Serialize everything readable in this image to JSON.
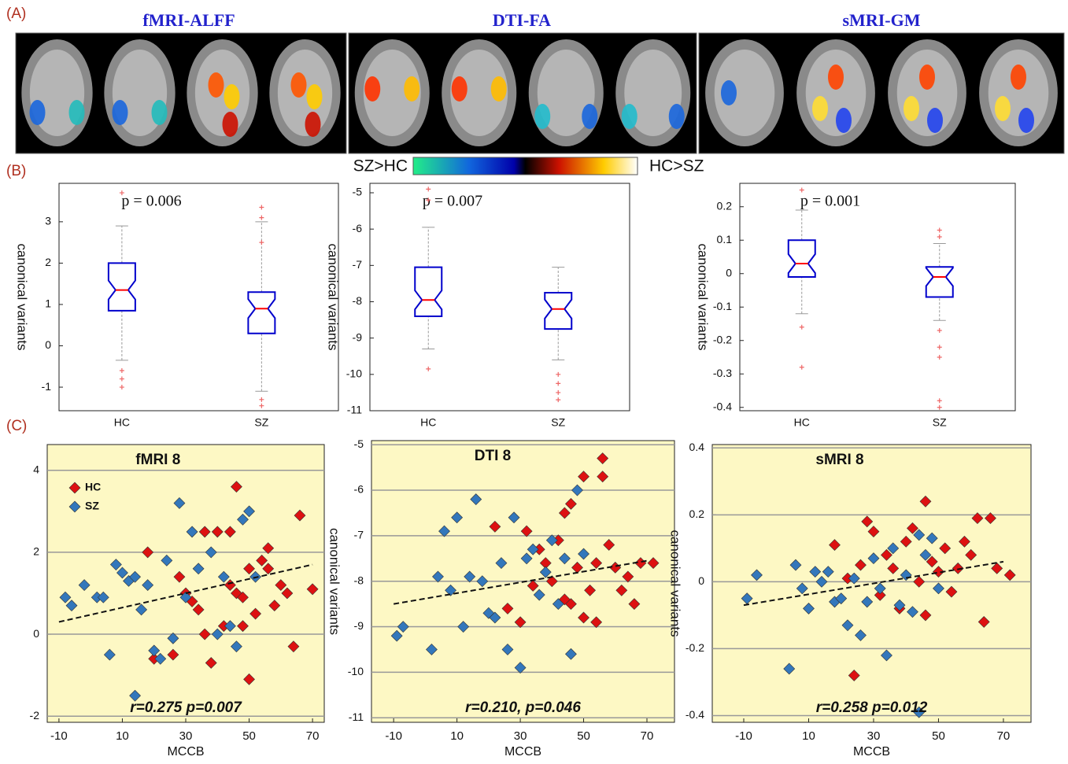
{
  "figure": {
    "panel_a": {
      "label": "(A)",
      "titles": [
        "fMRI-ALFF",
        "DTI-FA",
        "sMRI-GM"
      ]
    },
    "panel_b": {
      "label": "(B)"
    },
    "panel_c": {
      "label": "(C)"
    },
    "colorbar": {
      "left_label": "SZ>HC",
      "right_label": "HC>SZ"
    }
  },
  "chart_data": [
    {
      "type": "box",
      "ylabel": "canonical variants",
      "annotation": "p = 0.006",
      "categories": [
        "HC",
        "SZ"
      ],
      "color": "#0000cc",
      "median_color": "#ff0000",
      "stats": [
        {
          "whisker_low": -0.35,
          "q1": 0.85,
          "median": 1.35,
          "q3": 2.0,
          "whisker_high": 2.9,
          "outliers": [
            3.7,
            -0.6,
            -0.8,
            -1.0
          ]
        },
        {
          "whisker_low": -1.1,
          "q1": 0.3,
          "median": 0.9,
          "q3": 1.3,
          "whisker_high": 3.0,
          "outliers": [
            3.35,
            3.1,
            2.5,
            -1.3,
            -1.45
          ]
        }
      ],
      "ylim": [
        -1.57,
        3.93
      ],
      "yticks": [
        -1,
        0,
        1,
        2,
        3
      ]
    },
    {
      "type": "box",
      "ylabel": "canonical variants",
      "annotation": "p = 0.007",
      "categories": [
        "HC",
        "SZ"
      ],
      "color": "#0000cc",
      "median_color": "#ff0000",
      "stats": [
        {
          "whisker_low": -9.3,
          "q1": -8.4,
          "median": -7.95,
          "q3": -7.05,
          "whisker_high": -5.95,
          "outliers": [
            -4.9,
            -5.2,
            -9.85
          ]
        },
        {
          "whisker_low": -9.6,
          "q1": -8.75,
          "median": -8.2,
          "q3": -7.75,
          "whisker_high": -7.05,
          "outliers": [
            -10.0,
            -10.25,
            -10.5,
            -10.7
          ]
        }
      ],
      "ylim": [
        -11.0,
        -4.74
      ],
      "yticks": [
        -11,
        -10,
        -9,
        -8,
        -7,
        -6,
        -5
      ]
    },
    {
      "type": "box",
      "ylabel": "canonical variants",
      "annotation": "p = 0.001",
      "categories": [
        "HC",
        "SZ"
      ],
      "color": "#0000cc",
      "median_color": "#ff0000",
      "stats": [
        {
          "whisker_low": -0.12,
          "q1": -0.01,
          "median": 0.03,
          "q3": 0.1,
          "whisker_high": 0.19,
          "outliers": [
            0.25,
            -0.16,
            -0.28
          ]
        },
        {
          "whisker_low": -0.14,
          "q1": -0.07,
          "median": -0.01,
          "q3": 0.02,
          "whisker_high": 0.09,
          "outliers": [
            0.13,
            0.11,
            -0.17,
            -0.22,
            -0.25,
            -0.38,
            -0.4
          ]
        }
      ],
      "ylim": [
        -0.41,
        0.27
      ],
      "yticks": [
        -0.4,
        -0.3,
        -0.2,
        -0.1,
        0,
        0.1,
        0.2
      ]
    },
    {
      "type": "scatter",
      "title": "fMRI 8",
      "xlabel": "MCCB",
      "annotation": "r=0.275    p=0.007",
      "legend": "upper left",
      "grid": true,
      "series": [
        {
          "name": "HC",
          "color": "#dd1111",
          "x": [
            18,
            20,
            26,
            28,
            30,
            32,
            34,
            36,
            38,
            40,
            42,
            44,
            46,
            46,
            48,
            50,
            50,
            52,
            54,
            56,
            56,
            58,
            60,
            62,
            64,
            66,
            70,
            36,
            44,
            48
          ],
          "y": [
            2.0,
            -0.6,
            -0.5,
            1.4,
            1.0,
            0.8,
            0.6,
            2.5,
            -0.7,
            2.5,
            0.2,
            2.5,
            3.6,
            1.0,
            0.9,
            1.6,
            -1.1,
            0.5,
            1.8,
            2.1,
            1.6,
            0.7,
            1.2,
            1.0,
            -0.3,
            2.9,
            1.1,
            0.0,
            1.2,
            0.2
          ]
        },
        {
          "name": "SZ",
          "color": "#3377bb",
          "x": [
            -8,
            -6,
            -2,
            2,
            4,
            6,
            8,
            10,
            12,
            14,
            14,
            16,
            18,
            20,
            22,
            24,
            26,
            28,
            30,
            32,
            34,
            38,
            40,
            42,
            44,
            46,
            48,
            50,
            52
          ],
          "y": [
            0.9,
            0.7,
            1.2,
            0.9,
            0.9,
            -0.5,
            1.7,
            1.5,
            1.3,
            1.4,
            -1.5,
            0.6,
            1.2,
            -0.4,
            -0.6,
            1.8,
            -0.1,
            3.2,
            0.9,
            2.5,
            1.6,
            2.0,
            0.0,
            1.4,
            0.2,
            -0.3,
            2.8,
            3.0,
            1.4
          ]
        }
      ],
      "fit": {
        "x": [
          -10,
          70
        ],
        "y": [
          0.3,
          1.7
        ]
      },
      "xlim": [
        -13.7,
        73.7
      ],
      "ylim": [
        -2.15,
        4.63
      ],
      "xticks": [
        -10,
        10,
        30,
        50,
        70
      ],
      "yticks": [
        -2,
        0,
        2,
        4
      ]
    },
    {
      "type": "scatter",
      "title": "DTI 8",
      "xlabel": "MCCB",
      "ylabel": "canonical variants",
      "annotation": "r=0.210, p=0.046",
      "grid": true,
      "series": [
        {
          "name": "HC",
          "color": "#dd1111",
          "x": [
            22,
            26,
            30,
            32,
            34,
            36,
            38,
            40,
            42,
            44,
            46,
            46,
            48,
            50,
            50,
            52,
            54,
            56,
            56,
            58,
            60,
            62,
            64,
            66,
            68,
            72,
            54,
            44
          ],
          "y": [
            -6.8,
            -8.6,
            -8.9,
            -6.9,
            -8.1,
            -7.3,
            -7.6,
            -8.0,
            -7.1,
            -6.5,
            -6.3,
            -8.5,
            -7.7,
            -5.7,
            -8.8,
            -8.2,
            -7.6,
            -5.3,
            -5.7,
            -7.2,
            -7.7,
            -8.2,
            -7.9,
            -8.5,
            -7.6,
            -7.6,
            -8.9,
            -8.4
          ]
        },
        {
          "name": "SZ",
          "color": "#3377bb",
          "x": [
            -9,
            -7,
            2,
            4,
            6,
            8,
            10,
            12,
            14,
            16,
            18,
            20,
            22,
            24,
            26,
            28,
            30,
            32,
            34,
            36,
            38,
            40,
            42,
            44,
            46,
            48,
            50
          ],
          "y": [
            -9.2,
            -9.0,
            -9.5,
            -7.9,
            -6.9,
            -8.2,
            -6.6,
            -9.0,
            -7.9,
            -6.2,
            -8.0,
            -8.7,
            -8.8,
            -7.6,
            -9.5,
            -6.6,
            -9.9,
            -7.5,
            -7.3,
            -8.3,
            -7.8,
            -7.1,
            -8.5,
            -7.5,
            -9.6,
            -6.0,
            -7.4
          ]
        }
      ],
      "fit": {
        "x": [
          -10,
          70
        ],
        "y": [
          -8.5,
          -7.55
        ]
      },
      "xlim": [
        -17.0,
        78.7
      ],
      "ylim": [
        -11.1,
        -4.91
      ],
      "xticks": [
        -10,
        10,
        30,
        50,
        70
      ],
      "yticks": [
        -11,
        -10,
        -9,
        -8,
        -7,
        -6,
        -5
      ]
    },
    {
      "type": "scatter",
      "title": "sMRI 8",
      "xlabel": "MCCB",
      "ylabel": "canonical variants",
      "annotation": "r=0.258    p=0.012",
      "grid": true,
      "series": [
        {
          "name": "HC",
          "color": "#dd1111",
          "x": [
            18,
            22,
            24,
            26,
            28,
            30,
            32,
            34,
            36,
            38,
            40,
            42,
            44,
            46,
            46,
            48,
            50,
            52,
            54,
            56,
            58,
            60,
            62,
            64,
            66,
            68,
            72
          ],
          "y": [
            0.11,
            0.01,
            -0.28,
            0.05,
            0.18,
            0.15,
            -0.04,
            0.08,
            0.04,
            -0.08,
            0.12,
            0.16,
            0.0,
            0.24,
            -0.1,
            0.06,
            0.03,
            0.1,
            -0.03,
            0.04,
            0.12,
            0.08,
            0.19,
            -0.12,
            0.19,
            0.04,
            0.02
          ]
        },
        {
          "name": "SZ",
          "color": "#3377bb",
          "x": [
            -9,
            -6,
            4,
            6,
            8,
            10,
            12,
            14,
            16,
            18,
            20,
            22,
            24,
            26,
            28,
            30,
            32,
            34,
            36,
            38,
            40,
            42,
            44,
            44,
            46,
            48,
            50
          ],
          "y": [
            -0.05,
            0.02,
            -0.26,
            0.05,
            -0.02,
            -0.08,
            0.03,
            0.0,
            0.03,
            -0.06,
            -0.05,
            -0.13,
            0.01,
            -0.16,
            -0.06,
            0.07,
            -0.02,
            -0.22,
            0.1,
            -0.07,
            0.02,
            -0.09,
            0.14,
            -0.39,
            0.08,
            0.13,
            -0.02
          ]
        }
      ],
      "fit": {
        "x": [
          -10,
          70
        ],
        "y": [
          -0.07,
          0.06
        ]
      },
      "xlim": [
        -19.7,
        78.5
      ],
      "ylim": [
        -0.42,
        0.41
      ],
      "xticks": [
        -10,
        10,
        30,
        50,
        70
      ],
      "yticks": [
        -0.4,
        -0.2,
        0,
        0.2,
        0.4
      ]
    }
  ]
}
